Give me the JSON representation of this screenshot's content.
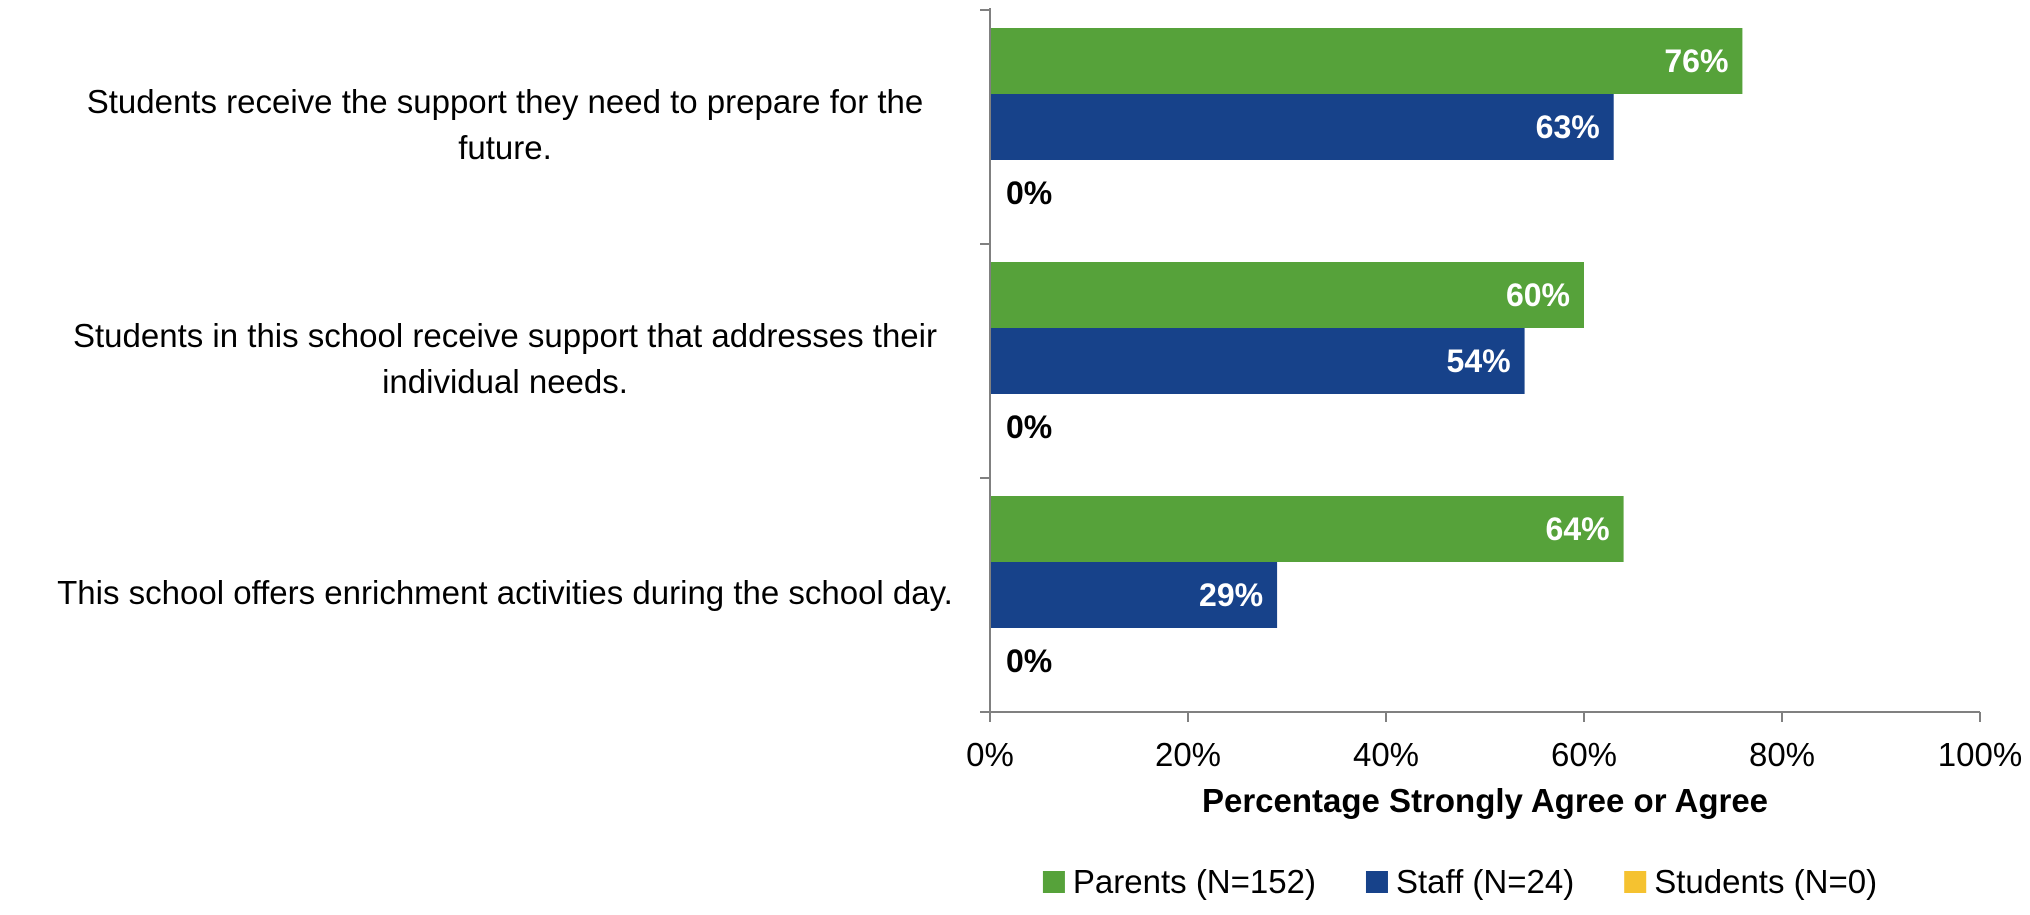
{
  "chart_data": {
    "type": "bar",
    "orientation": "horizontal",
    "categories": [
      [
        "Students receive the support they need to prepare for the",
        "future."
      ],
      [
        "Students in this school receive support that addresses their",
        "individual needs."
      ],
      [
        "This school offers enrichment activities during the school day."
      ]
    ],
    "series": [
      {
        "name": "Parents (N=152)",
        "color": "#56A23A",
        "values": [
          76,
          60,
          64
        ],
        "labels": [
          "76%",
          "60%",
          "64%"
        ]
      },
      {
        "name": "Staff (N=24)",
        "color": "#17428A",
        "values": [
          63,
          54,
          29
        ],
        "labels": [
          "63%",
          "54%",
          "29%"
        ]
      },
      {
        "name": "Students (N=0)",
        "color": "#F5C230",
        "values": [
          0,
          0,
          0
        ],
        "labels": [
          "0%",
          "0%",
          "0%"
        ]
      }
    ],
    "xlim": [
      0,
      100
    ],
    "x_ticks": [
      "0%",
      "20%",
      "40%",
      "60%",
      "80%",
      "100%"
    ],
    "x_tick_values": [
      0,
      20,
      40,
      60,
      80,
      100
    ],
    "xlabel": "Percentage Strongly Agree or Agree",
    "legend_position": "bottom",
    "grid": false
  }
}
